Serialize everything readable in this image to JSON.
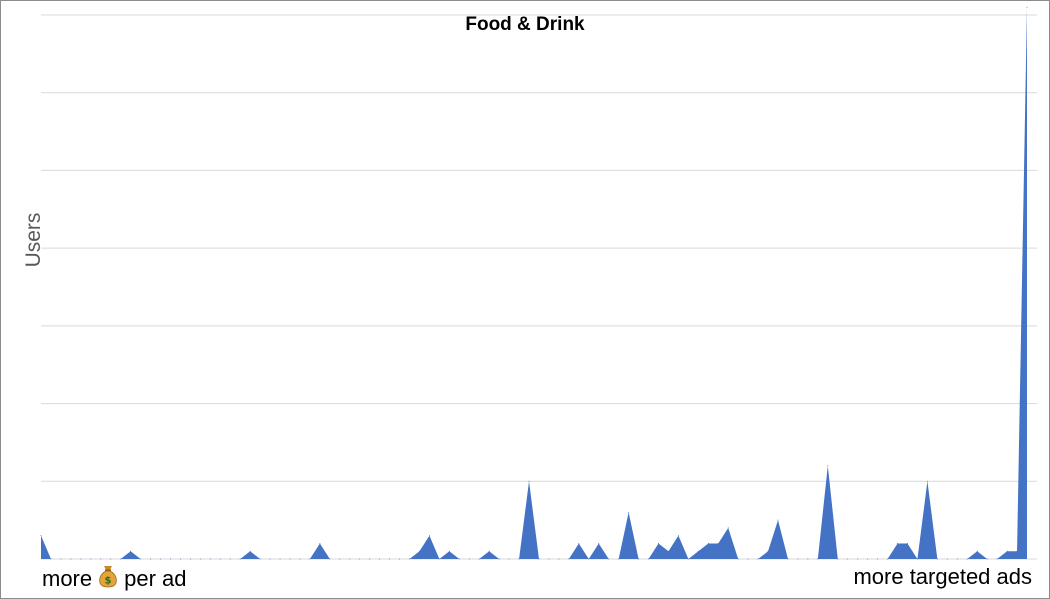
{
  "chart_data": {
    "type": "area",
    "title": "Food & Drink",
    "ylabel": "Users",
    "xlabel_left": "more",
    "xlabel_left_icon": "money-bag-icon",
    "xlabel_left_suffix": "per ad",
    "xlabel_right": "more targeted ads",
    "ylim": [
      0,
      7
    ],
    "grid": true,
    "color": "#4472C4",
    "x": [
      0,
      1,
      2,
      3,
      4,
      5,
      6,
      7,
      8,
      9,
      10,
      11,
      12,
      13,
      14,
      15,
      16,
      17,
      18,
      19,
      20,
      21,
      22,
      23,
      24,
      25,
      26,
      27,
      28,
      29,
      30,
      31,
      32,
      33,
      34,
      35,
      36,
      37,
      38,
      39,
      40,
      41,
      42,
      43,
      44,
      45,
      46,
      47,
      48,
      49,
      50,
      51,
      52,
      53,
      54,
      55,
      56,
      57,
      58,
      59,
      60,
      61,
      62,
      63,
      64,
      65,
      66,
      67,
      68,
      69,
      70,
      71,
      72,
      73,
      74,
      75,
      76,
      77,
      78,
      79,
      80,
      81,
      82,
      83,
      84,
      85,
      86,
      87,
      88,
      89,
      90,
      91,
      92,
      93,
      94,
      95,
      96,
      97,
      98,
      99
    ],
    "values": [
      0.3,
      0,
      0,
      0,
      0,
      0,
      0,
      0,
      0,
      0.1,
      0,
      0,
      0,
      0,
      0,
      0,
      0,
      0,
      0,
      0,
      0,
      0.1,
      0,
      0,
      0,
      0,
      0,
      0,
      0.2,
      0,
      0,
      0,
      0,
      0,
      0,
      0,
      0,
      0,
      0.1,
      0.3,
      0,
      0.1,
      0,
      0,
      0,
      0.1,
      0,
      0,
      0,
      1.0,
      0,
      0,
      0,
      0,
      0.2,
      0,
      0.2,
      0,
      0,
      0.6,
      0,
      0,
      0.2,
      0.1,
      0.3,
      0,
      0.1,
      0.2,
      0.2,
      0.4,
      0,
      0,
      0,
      0.1,
      0.5,
      0,
      0,
      0,
      0,
      1.2,
      0,
      0,
      0,
      0,
      0,
      0,
      0.2,
      0.2,
      0,
      1.0,
      0,
      0,
      0,
      0,
      0.1,
      0,
      0,
      0.1,
      0.1,
      7.1
    ]
  }
}
